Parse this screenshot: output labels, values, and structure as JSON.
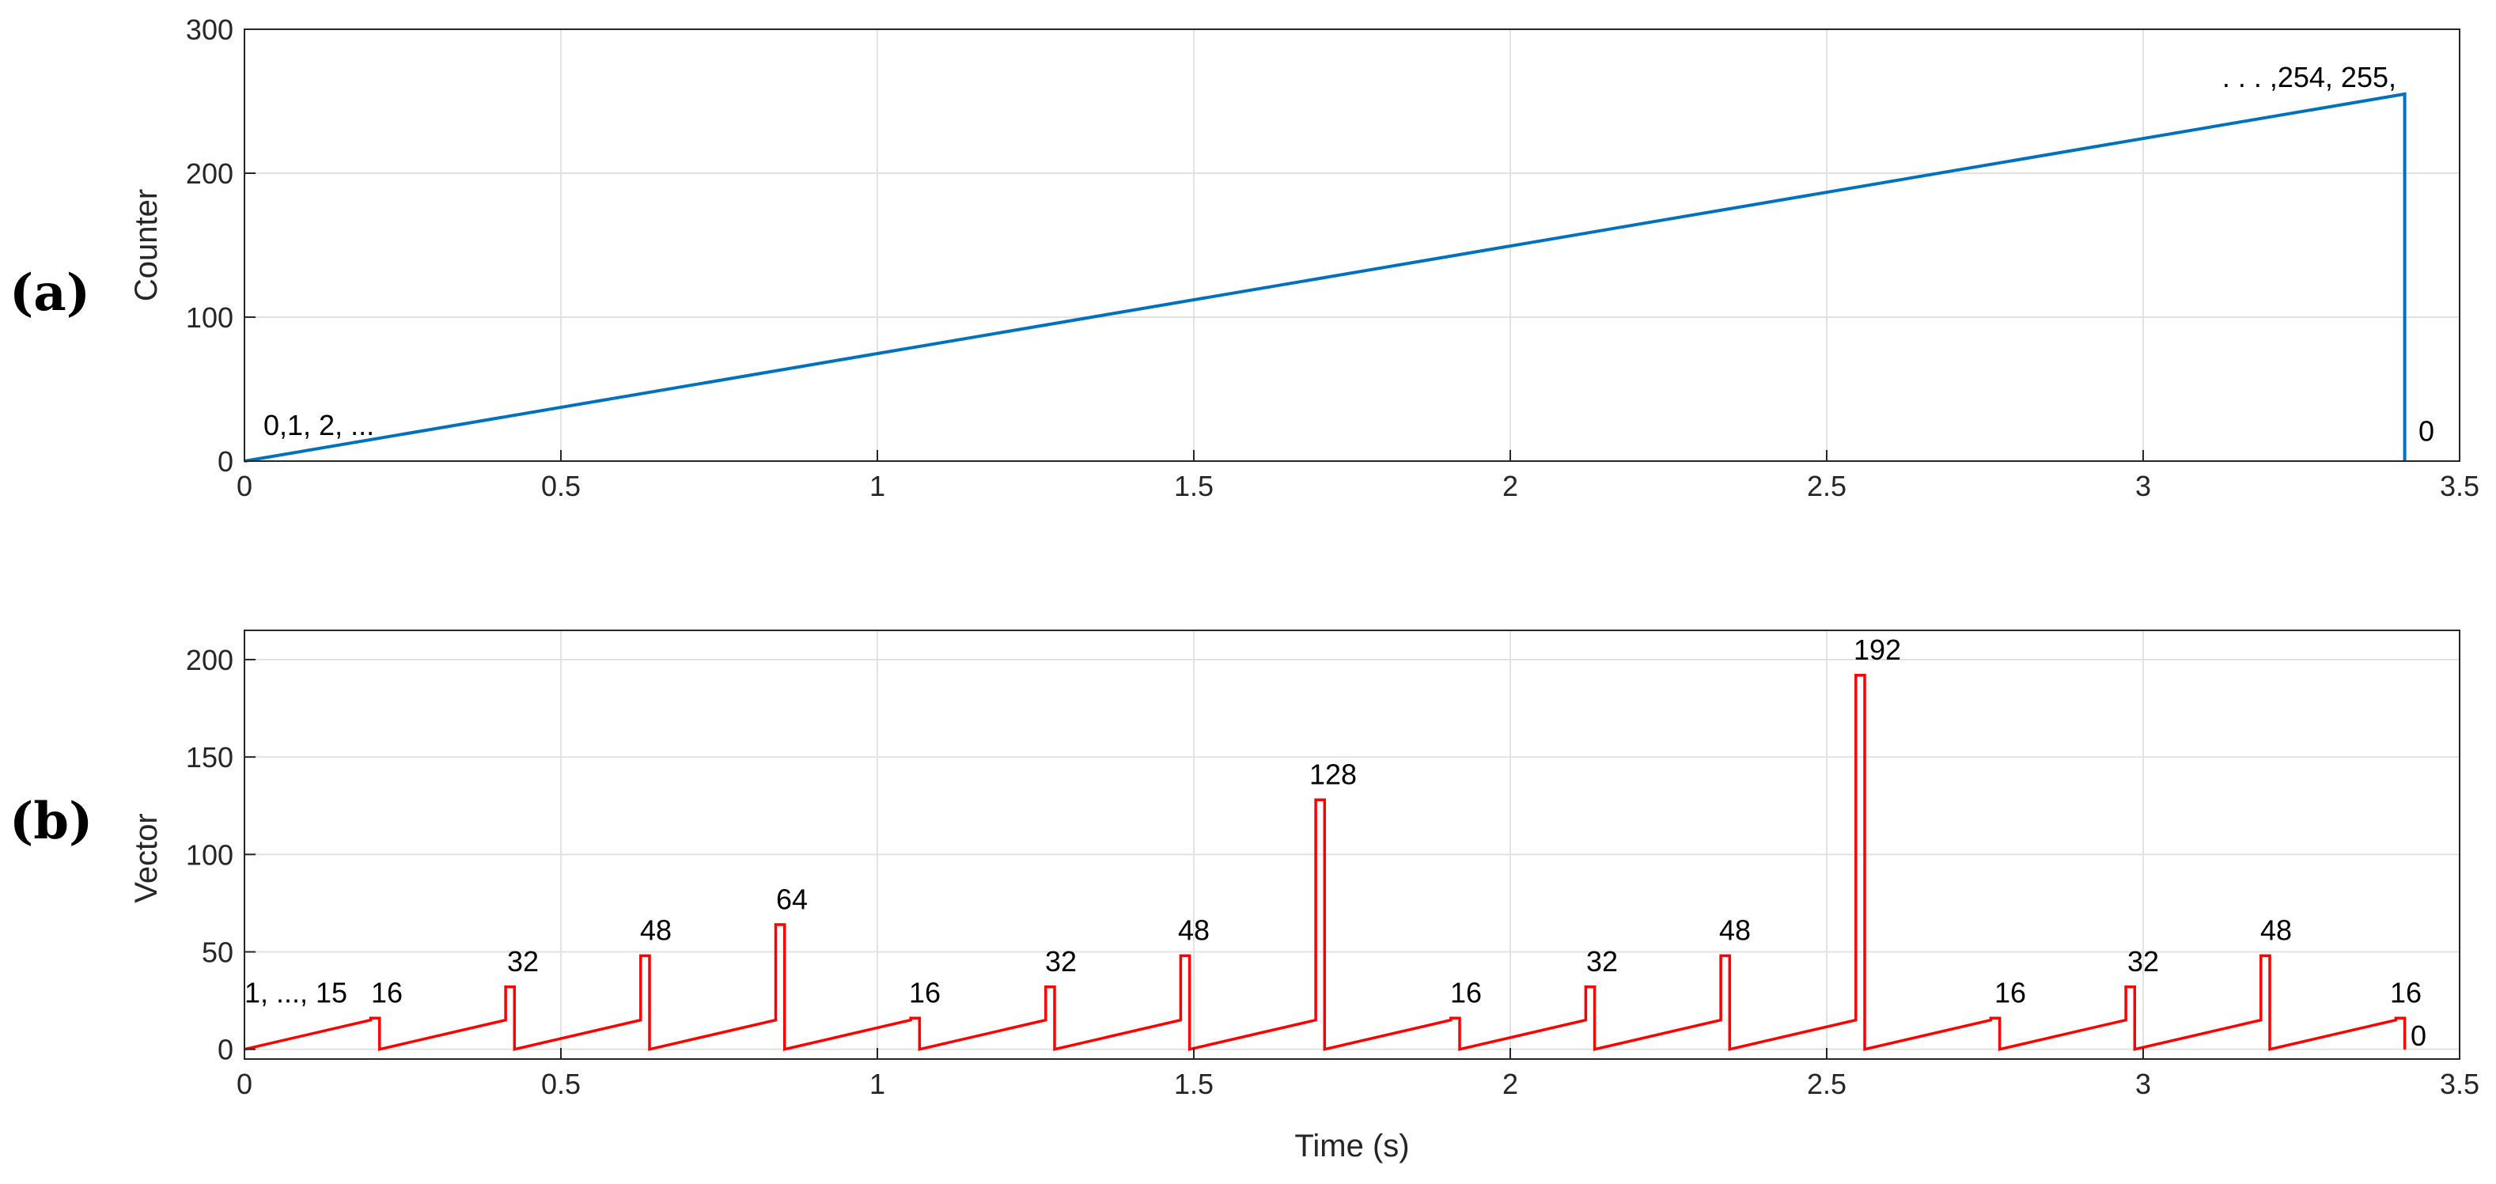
{
  "chart_data": [
    {
      "type": "line",
      "panel": "(a)",
      "title": "",
      "xlabel": "",
      "ylabel": "Counter",
      "xlim": [
        0,
        3.5
      ],
      "ylim": [
        0,
        300
      ],
      "xticks": [
        0,
        0.5,
        1,
        1.5,
        2,
        2.5,
        3,
        3.5
      ],
      "yticks": [
        0,
        100,
        200,
        300
      ],
      "grid": true,
      "color": "#0072BD",
      "series": [
        {
          "name": "Counter",
          "x": [
            0,
            3.4133,
            3.4133
          ],
          "y": [
            0,
            255,
            0
          ]
        }
      ],
      "annotations": [
        {
          "text": "0,1, 2, ...",
          "x": 0.03,
          "y": 18
        },
        {
          "text": ". . . ,254, 255,",
          "x": 3.29,
          "y": 260
        },
        {
          "text": "0",
          "x": 3.435,
          "y": 14
        }
      ]
    },
    {
      "type": "line",
      "panel": "(b)",
      "title": "",
      "xlabel": "Time (s)",
      "ylabel": "Vector",
      "xlim": [
        0,
        3.5
      ],
      "ylim": [
        -5,
        215
      ],
      "xticks": [
        0,
        0.5,
        1,
        1.5,
        2,
        2.5,
        3,
        3.5
      ],
      "yticks": [
        0,
        50,
        100,
        150,
        200
      ],
      "grid": true,
      "color": "#FF0000",
      "period": 0.21333,
      "peaks": [
        16,
        32,
        48,
        64,
        16,
        32,
        48,
        128,
        16,
        32,
        48,
        192,
        16,
        32,
        48,
        16
      ],
      "annotations": [
        {
          "text": "1, ..., 15",
          "x": 0.06,
          "y": 24
        },
        {
          "text": "16",
          "x": 0.225,
          "y": 24
        },
        {
          "text": "32",
          "x": 0.44,
          "y": 40
        },
        {
          "text": "48",
          "x": 0.65,
          "y": 56
        },
        {
          "text": "64",
          "x": 0.865,
          "y": 72
        },
        {
          "text": "16",
          "x": 1.075,
          "y": 24
        },
        {
          "text": "32",
          "x": 1.29,
          "y": 40
        },
        {
          "text": "48",
          "x": 1.5,
          "y": 56
        },
        {
          "text": "128",
          "x": 1.72,
          "y": 136
        },
        {
          "text": "16",
          "x": 1.93,
          "y": 24
        },
        {
          "text": "32",
          "x": 2.145,
          "y": 40
        },
        {
          "text": "48",
          "x": 2.355,
          "y": 56
        },
        {
          "text": "192",
          "x": 2.58,
          "y": 200
        },
        {
          "text": "16",
          "x": 2.79,
          "y": 24
        },
        {
          "text": "32",
          "x": 3.0,
          "y": 40
        },
        {
          "text": "48",
          "x": 3.21,
          "y": 56
        },
        {
          "text": "16",
          "x": 3.415,
          "y": 24
        },
        {
          "text": "0",
          "x": 3.435,
          "y": 2
        }
      ]
    }
  ]
}
